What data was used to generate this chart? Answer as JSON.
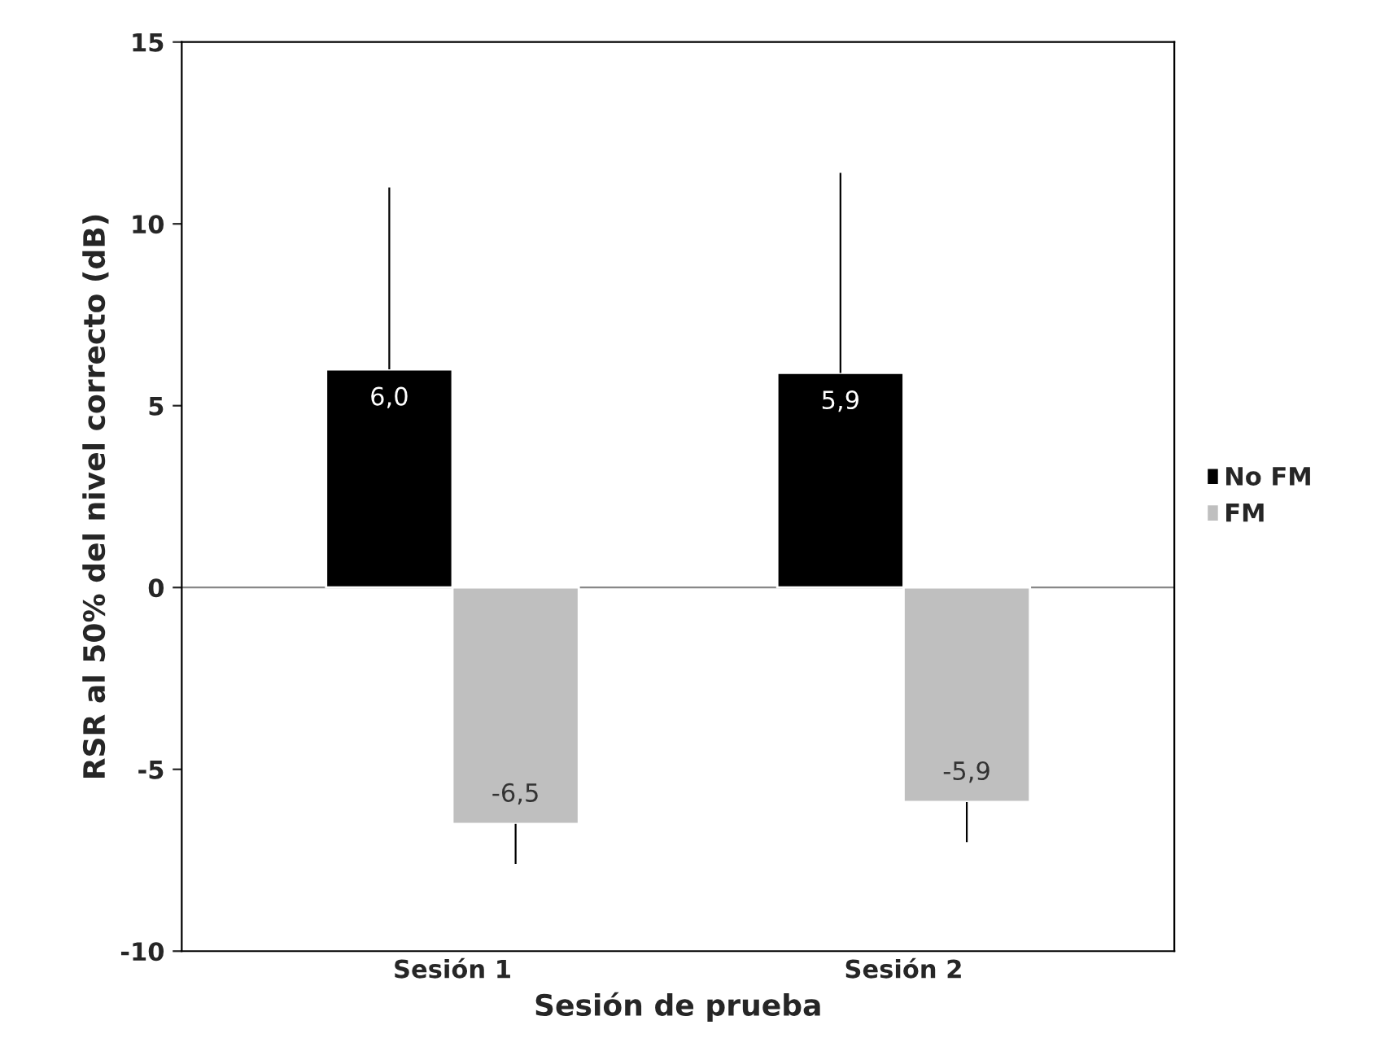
{
  "chart_data": {
    "type": "bar",
    "xlabel": "Sesión de prueba",
    "ylabel": "RSR al 50% del nivel correcto (dB)",
    "categories": [
      "Sesión 1",
      "Sesión 2"
    ],
    "series": [
      {
        "name": "No FM",
        "color": "#000000",
        "values": [
          6.0,
          5.9
        ],
        "errors": [
          [
            6.0,
            11.0
          ],
          [
            5.9,
            11.4
          ]
        ],
        "value_labels": [
          "6,0",
          "5,9"
        ]
      },
      {
        "name": "FM",
        "color": "#bfbfbf",
        "values": [
          -6.5,
          -5.9
        ],
        "errors": [
          [
            -7.6,
            -6.5
          ],
          [
            -7.0,
            -5.9
          ]
        ],
        "value_labels": [
          "-6,5",
          "-5,9"
        ]
      }
    ],
    "ylim": [
      -10,
      15
    ],
    "yticks": [
      -10,
      -5,
      0,
      5,
      10,
      15
    ],
    "grid": false,
    "ref_lines": [
      {
        "axis": "y",
        "value": 0,
        "color": "#888888"
      }
    ],
    "legend": "right"
  }
}
